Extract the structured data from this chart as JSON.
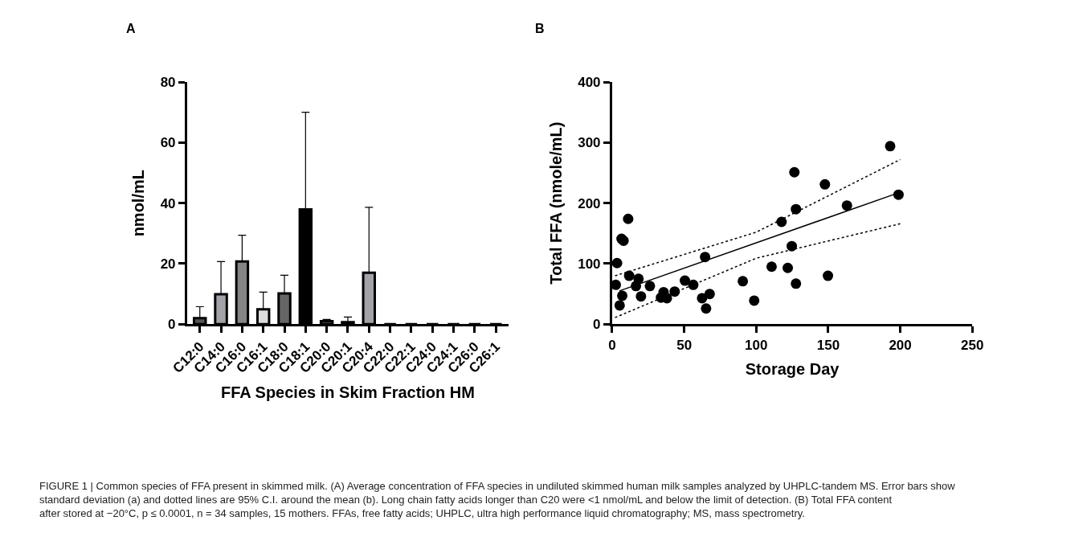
{
  "chart_data": [
    {
      "type": "bar",
      "xlabel": "FFA Species in Skim Fraction HM",
      "ylabel": "nmol/mL",
      "annotations": [
        "A",
        "FIGURE 1 | Common species of FFA present in skimmed milk. (A) Average concentration of FFA species in undiluted skimmed human milk samples analyzed by UHPLC-tandem MS. Error bars show standard deviation (a) and dotted lines are 95% C.I. around the mean (b). Long chain fatty acids longer than C20 were <1 nmol/mL and below the limit of detection. (B) Total FFA content after stored at −20°C, p ≤ 0.0001, n = 34 samples, 15 mothers. FFAs, free fatty acids; UHPLC, ultra high performance liquid chromatography; MS, mass spectrometry."
      ],
      "categories": [
        "C12:0",
        "C14:0",
        "C16:0",
        "C16:1",
        "C18:0",
        "C18:1",
        "C20:0",
        "C20:1",
        "C20:4",
        "C22:0",
        "C22:1",
        "C24:0",
        "C24:1",
        "C26:0",
        "C26:1"
      ],
      "values": [
        2.0,
        9.9,
        20.7,
        4.9,
        10.2,
        37.9,
        1.0,
        0.7,
        17.0,
        0,
        0,
        0,
        0,
        0,
        0
      ],
      "errors": [
        [
          2.0,
          5.8
        ],
        [
          9.9,
          20.7
        ],
        [
          20.7,
          29.4
        ],
        [
          4.9,
          10.6
        ],
        [
          10.2,
          16.2
        ],
        [
          37.9,
          70.0
        ],
        [
          1.0,
          1.6
        ],
        [
          0.7,
          2.4
        ],
        [
          17.0,
          38.6
        ],
        null,
        null,
        null,
        null,
        null,
        null
      ],
      "colors": [
        "#555555",
        "#a2a2a8",
        "#858585",
        "#dcdcdc",
        "#666666",
        "#000000",
        "#555555",
        "#555555",
        "#a2a2a8",
        "#000000",
        "#000000",
        "#000000",
        "#000000",
        "#000000",
        "#000000"
      ],
      "ylim": [
        0,
        80
      ],
      "yticks": [
        0,
        20,
        40,
        60,
        80
      ]
    },
    {
      "type": "scatter",
      "xlabel": "Storage Day",
      "ylabel": "Total FFA (nmole/mL)",
      "annotations": [
        "B"
      ],
      "series": [
        {
          "type": "scatter",
          "color": "#000000",
          "marker": "circle",
          "x": [
            126.5,
            147.7,
            127.6,
            117.6,
            124.7,
            110.7,
            121.9,
            127.6,
            149.8,
            90.7,
            98.6,
            64.5,
            65.2,
            67.7,
            62.4,
            56.3,
            50.5,
            43.4,
            38,
            35.7,
            33.9,
            26.2,
            20,
            18.3,
            16.5,
            11.8,
            11.1,
            6.5,
            7.9,
            3.4,
            2.5,
            7,
            5.2,
            193,
            198.8,
            163
          ],
          "values": [
            251,
            231,
            190,
            169,
            129,
            95,
            93,
            67,
            80,
            71,
            39,
            111,
            26,
            50,
            43,
            65,
            72,
            54,
            43,
            53,
            44,
            63,
            46,
            75,
            63,
            80,
            174,
            141,
            138,
            101,
            65,
            47,
            31,
            294,
            214,
            196
          ]
        },
        {
          "type": "line",
          "color": "#000000",
          "line_style": "solid",
          "x": [
            5,
            200
          ],
          "values": [
            55,
            218
          ]
        },
        {
          "type": "line",
          "color": "#000000",
          "line_style": "dotted",
          "x": [
            2,
            100,
            200
          ],
          "values": [
            80,
            152,
            272
          ]
        },
        {
          "type": "line",
          "color": "#000000",
          "line_style": "dotted",
          "x": [
            2,
            100,
            200
          ],
          "values": [
            11,
            109,
            166
          ]
        }
      ],
      "xlim": [
        0,
        250
      ],
      "xticks": [
        0,
        50,
        100,
        150,
        200,
        250
      ],
      "ylim": [
        0,
        400
      ],
      "yticks": [
        0,
        100,
        200,
        300,
        400
      ]
    }
  ]
}
